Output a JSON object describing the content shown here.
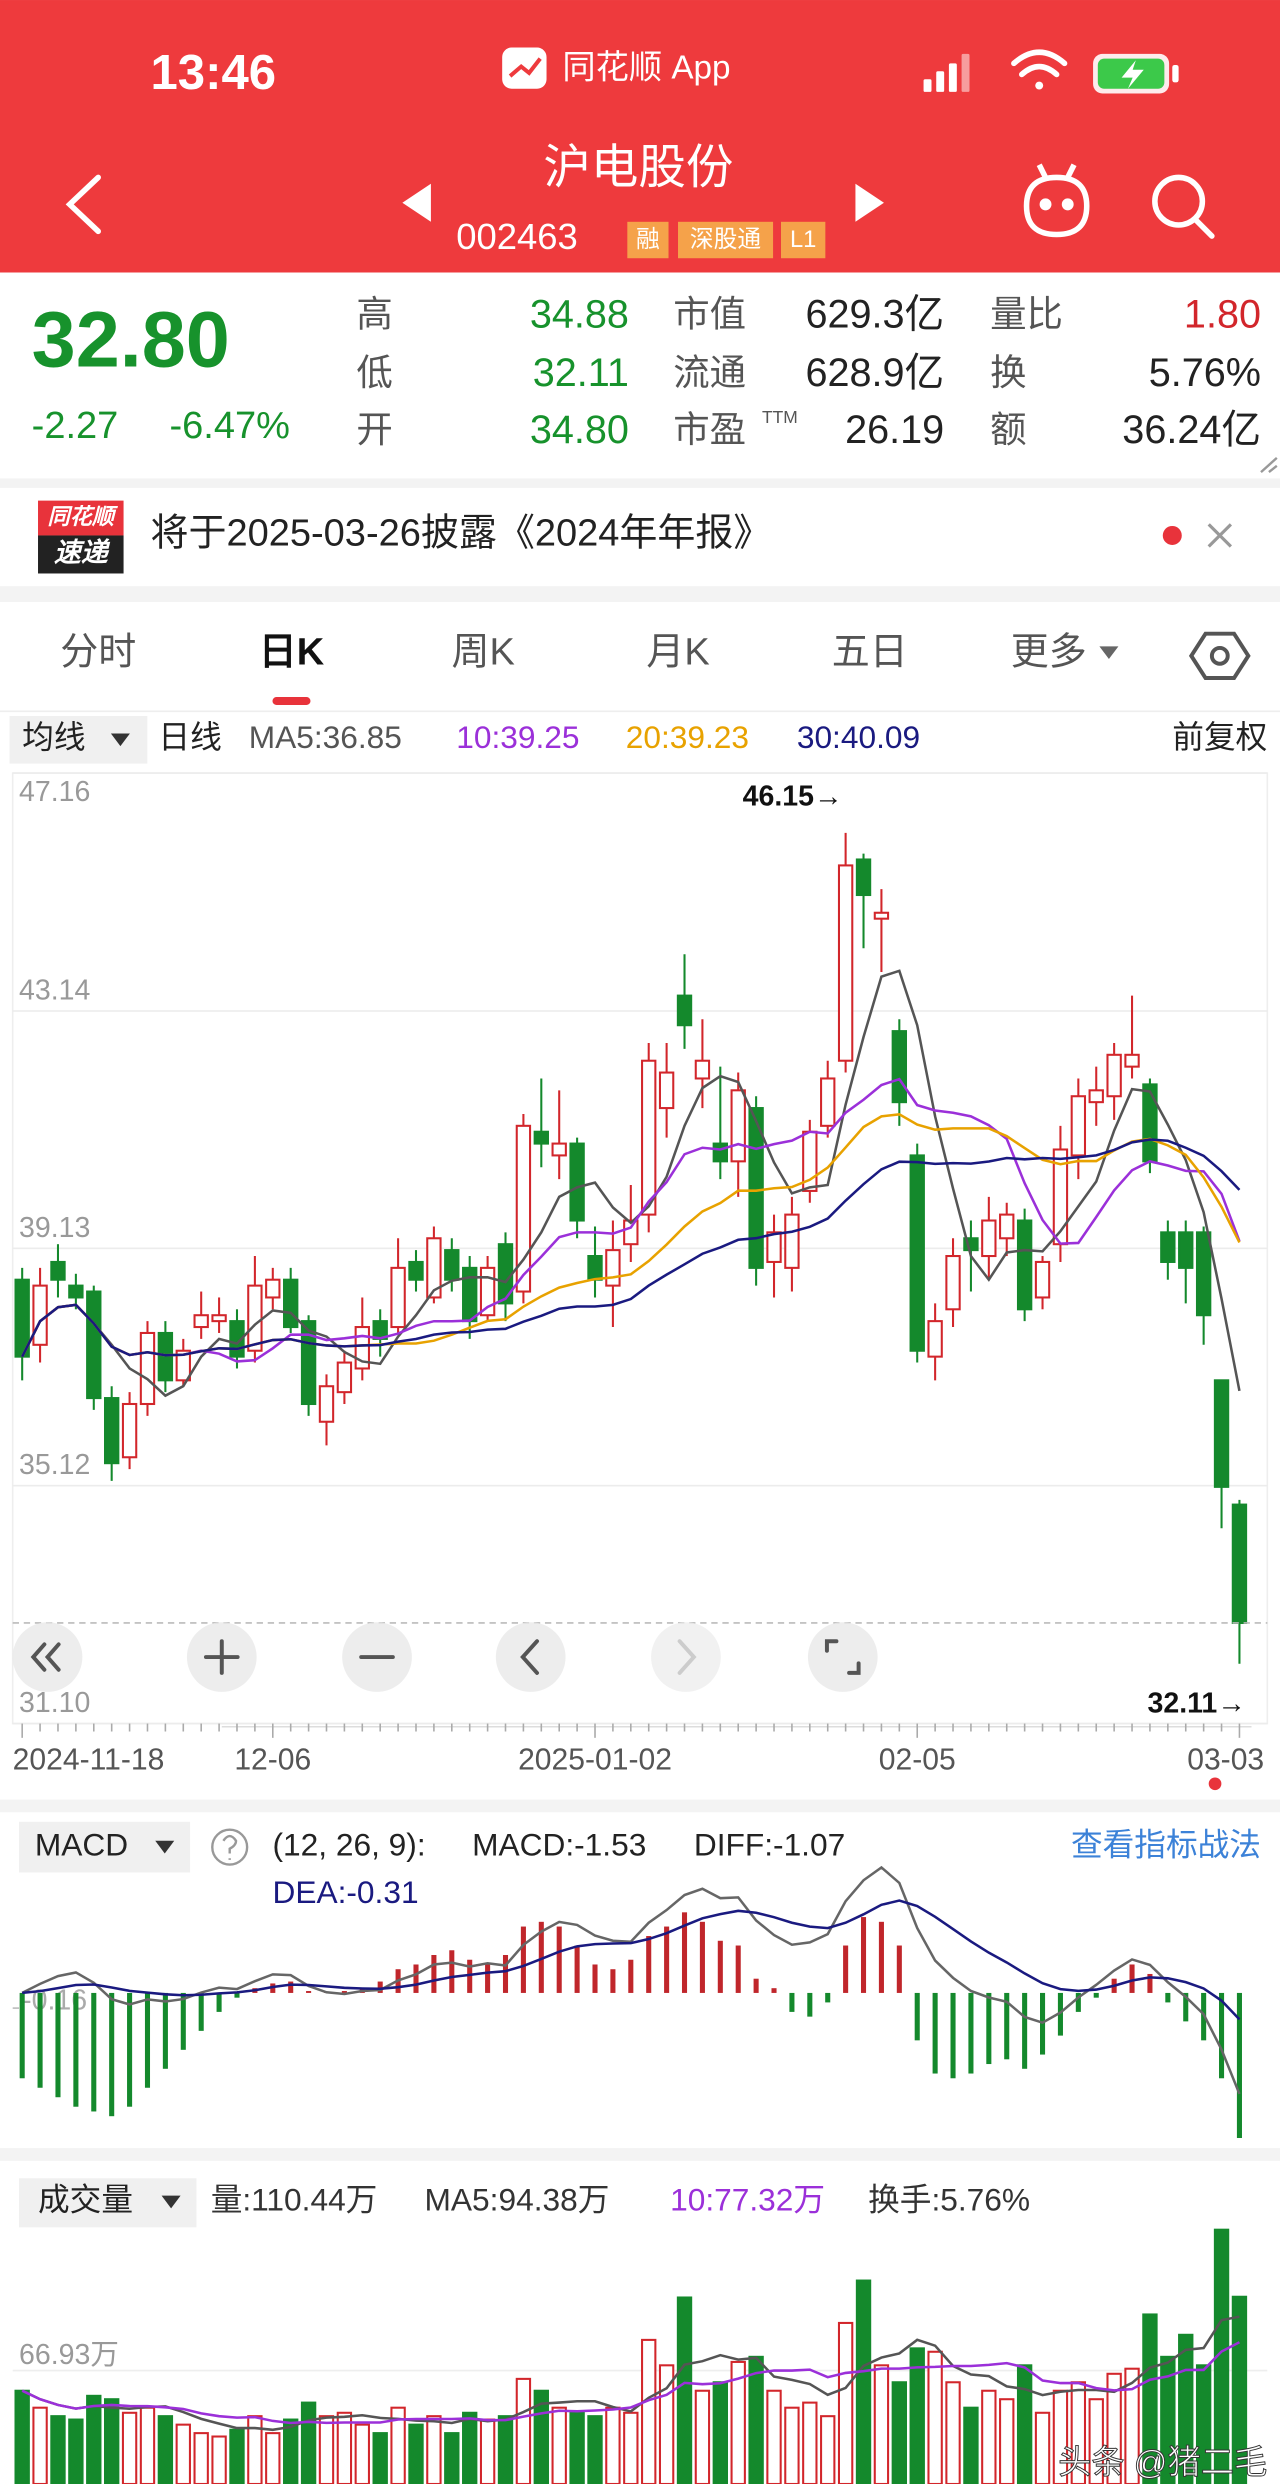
{
  "status_bar": {
    "time": "13:46",
    "app_name": "同花顺 App"
  },
  "header": {
    "stock_name": "沪电股份",
    "stock_code": "002463",
    "tags": [
      "融",
      "深股通",
      "L1"
    ]
  },
  "quote": {
    "price": "32.80",
    "change": "-2.27",
    "change_percent": "-6.47%",
    "stats": [
      {
        "label": "高",
        "value": "34.88"
      },
      {
        "label": "市值",
        "value": "629.3亿"
      },
      {
        "label": "量比",
        "value": "1.80"
      },
      {
        "label": "低",
        "value": "32.11"
      },
      {
        "label": "流通",
        "value": "628.9亿"
      },
      {
        "label": "换",
        "value": "5.76%"
      },
      {
        "label": "开",
        "value": "34.80"
      },
      {
        "label": "市盈",
        "label_sup": "TTM",
        "value": "26.19"
      },
      {
        "label": "额",
        "value": "36.24亿"
      }
    ]
  },
  "notice": {
    "logo_top": "同花顺",
    "logo_bottom": "速递",
    "text": "将于2025-03-26披露《2024年年报》"
  },
  "tabs": [
    "分时",
    "日K",
    "周K",
    "月K",
    "五日",
    "更多"
  ],
  "active_tab": 1,
  "watermark": "头条 @猪二毛",
  "chart_data": [
    {
      "type": "candlestick",
      "indicator_selector": "均线",
      "period_label": "日线",
      "ma_legend": [
        "MA5:36.85",
        "10:39.25",
        "20:39.23",
        "30:40.09"
      ],
      "ma_periods": [
        5,
        10,
        20,
        30
      ],
      "ma_colors": [
        "#555555",
        "#9b30d9",
        "#e8a200",
        "#1a1a80"
      ],
      "adjust_label": "前复权",
      "up_color": "#d2262b",
      "down_color": "#14892c",
      "categories": [
        "2024-11-18",
        null,
        null,
        null,
        null,
        null,
        null,
        null,
        null,
        null,
        null,
        null,
        null,
        null,
        "12-06",
        null,
        null,
        null,
        null,
        null,
        null,
        null,
        null,
        null,
        null,
        null,
        null,
        null,
        null,
        null,
        null,
        null,
        "2025-01-02",
        null,
        null,
        null,
        null,
        null,
        null,
        null,
        null,
        null,
        null,
        null,
        null,
        null,
        null,
        null,
        null,
        null,
        "02-05",
        null,
        null,
        null,
        null,
        null,
        null,
        null,
        null,
        null,
        null,
        null,
        null,
        null,
        null,
        null,
        null,
        null,
        "03-03"
      ],
      "open": [
        38.6,
        37.5,
        38.9,
        38.5,
        38.4,
        36.6,
        35.6,
        36.5,
        37.7,
        36.9,
        37.8,
        37.9,
        37.9,
        37.4,
        38.3,
        38.6,
        37.9,
        36.2,
        36.7,
        37.1,
        37.9,
        37.8,
        38.9,
        38.3,
        39.1,
        38.8,
        38.0,
        39.2,
        38.4,
        41.1,
        40.7,
        40.9,
        39.0,
        38.5,
        39.2,
        39.7,
        41.5,
        43.4,
        42.0,
        40.9,
        40.6,
        41.5,
        38.9,
        38.8,
        40.1,
        41.2,
        42.3,
        45.7,
        44.7,
        42.8,
        40.7,
        37.3,
        38.1,
        39.3,
        39.0,
        39.3,
        39.6,
        38.3,
        39.2,
        40.7,
        41.6,
        41.7,
        42.2,
        41.9,
        39.4,
        39.4,
        39.4,
        36.9,
        34.8
      ],
      "high": [
        38.8,
        38.8,
        39.2,
        38.7,
        38.5,
        36.8,
        36.7,
        37.9,
        37.9,
        37.6,
        38.4,
        38.3,
        38.1,
        39.0,
        38.8,
        38.8,
        38.0,
        37.0,
        37.4,
        38.3,
        38.1,
        39.3,
        39.1,
        39.5,
        39.3,
        39.0,
        39.0,
        39.4,
        41.4,
        42.0,
        41.8,
        41.0,
        39.5,
        39.6,
        40.2,
        42.6,
        42.6,
        44.1,
        43.0,
        42.2,
        42.1,
        41.7,
        39.7,
        40.0,
        41.3,
        42.3,
        46.15,
        45.8,
        45.2,
        43.0,
        40.9,
        38.2,
        39.3,
        39.6,
        40.0,
        39.9,
        39.8,
        39.0,
        41.2,
        42.0,
        42.2,
        42.6,
        43.4,
        42.0,
        39.6,
        39.6,
        39.5,
        36.9,
        34.88
      ],
      "low": [
        36.9,
        37.2,
        38.3,
        38.1,
        36.4,
        35.2,
        35.4,
        36.3,
        36.7,
        36.8,
        37.6,
        37.7,
        37.1,
        37.2,
        38.1,
        37.7,
        36.3,
        35.8,
        36.5,
        36.9,
        37.3,
        37.7,
        38.4,
        38.2,
        38.4,
        37.6,
        37.9,
        37.9,
        38.2,
        40.5,
        40.3,
        39.3,
        38.3,
        37.8,
        38.9,
        39.4,
        41.0,
        42.5,
        41.5,
        40.3,
        40.0,
        38.5,
        38.3,
        38.4,
        39.9,
        41.0,
        42.1,
        44.2,
        43.8,
        41.2,
        37.2,
        36.9,
        37.8,
        38.4,
        38.6,
        39.0,
        37.9,
        38.1,
        38.9,
        40.3,
        41.2,
        41.3,
        42.0,
        40.4,
        38.6,
        38.2,
        37.5,
        34.4,
        32.11
      ],
      "close": [
        37.3,
        38.5,
        38.6,
        38.3,
        36.6,
        35.5,
        36.5,
        37.7,
        36.9,
        37.4,
        38.0,
        38.0,
        37.3,
        38.5,
        38.6,
        37.8,
        36.5,
        36.8,
        37.2,
        37.8,
        37.6,
        38.8,
        38.6,
        39.3,
        38.6,
        37.9,
        38.8,
        38.2,
        41.2,
        40.9,
        40.9,
        39.6,
        38.6,
        39.1,
        39.6,
        42.3,
        42.1,
        42.9,
        42.3,
        40.6,
        41.8,
        38.8,
        39.4,
        39.7,
        41.1,
        42.0,
        45.6,
        45.1,
        44.8,
        41.6,
        37.4,
        37.9,
        39.0,
        39.1,
        39.6,
        39.7,
        38.1,
        38.9,
        40.8,
        41.7,
        41.8,
        42.4,
        42.4,
        40.6,
        38.9,
        38.8,
        38.0,
        35.1,
        32.8
      ],
      "ylim": [
        31.1,
        47.16
      ],
      "yticks": [
        {
          "value": 31.1,
          "label": "31.10"
        },
        35.12,
        39.13,
        43.14,
        47.16
      ],
      "grid": true,
      "annotations": [
        {
          "text": "46.15→",
          "at": "high"
        },
        {
          "text": "32.11→",
          "at": "low"
        }
      ]
    },
    {
      "type": "macd",
      "name": "MACD",
      "params": "(12, 26, 9):",
      "legend": [
        "MACD:-1.53",
        "DIFF:-1.07",
        "DEA:-0.31"
      ],
      "link": "查看指标战法",
      "ema_periods": [
        12,
        26,
        9
      ],
      "line_colors": [
        "#666666",
        "#1a1a80"
      ],
      "values": [
        -0.9,
        -1.0,
        -1.1,
        -1.2,
        -1.25,
        -1.3,
        -1.2,
        -1.0,
        -0.8,
        -0.6,
        -0.4,
        -0.2,
        -0.05,
        0.05,
        0.1,
        0.12,
        0.02,
        0.01,
        0.02,
        0.05,
        0.12,
        0.25,
        0.3,
        0.4,
        0.45,
        0.35,
        0.3,
        0.4,
        0.7,
        0.75,
        0.7,
        0.5,
        0.3,
        0.25,
        0.35,
        0.6,
        0.7,
        0.85,
        0.75,
        0.55,
        0.5,
        0.15,
        0.05,
        -0.2,
        -0.25,
        -0.1,
        0.5,
        0.8,
        0.75,
        0.5,
        -0.5,
        -0.85,
        -0.9,
        -0.85,
        -0.75,
        -0.7,
        -0.8,
        -0.65,
        -0.45,
        -0.2,
        -0.05,
        0.15,
        0.3,
        0.2,
        -0.1,
        -0.3,
        -0.5,
        -0.9,
        -1.53
      ],
      "ylim": [
        -1.57,
        1.22
      ],
      "yticks": [
        -0.16
      ]
    },
    {
      "type": "volume",
      "name": "成交量",
      "legend": [
        "量:110.44万",
        "MA5:94.38万",
        "10:77.32万",
        "换手:5.76%"
      ],
      "ma_periods": [
        5,
        10
      ],
      "ma_colors": [
        "#555555",
        "#9b30d9"
      ],
      "values": [
        55,
        45,
        40,
        38,
        52,
        50,
        42,
        45,
        40,
        35,
        30,
        28,
        32,
        40,
        30,
        38,
        48,
        40,
        42,
        35,
        30,
        45,
        35,
        40,
        30,
        42,
        38,
        40,
        62,
        55,
        45,
        42,
        40,
        45,
        42,
        85,
        70,
        110,
        55,
        60,
        72,
        75,
        55,
        45,
        48,
        40,
        95,
        120,
        70,
        60,
        80,
        78,
        60,
        45,
        55,
        50,
        70,
        42,
        55,
        60,
        50,
        65,
        68,
        100,
        75,
        88,
        70,
        150,
        110.44
      ],
      "ylim": [
        0,
        157
      ],
      "yticks": [
        {
          "value": 66.93,
          "label": "66.93万"
        }
      ]
    }
  ]
}
